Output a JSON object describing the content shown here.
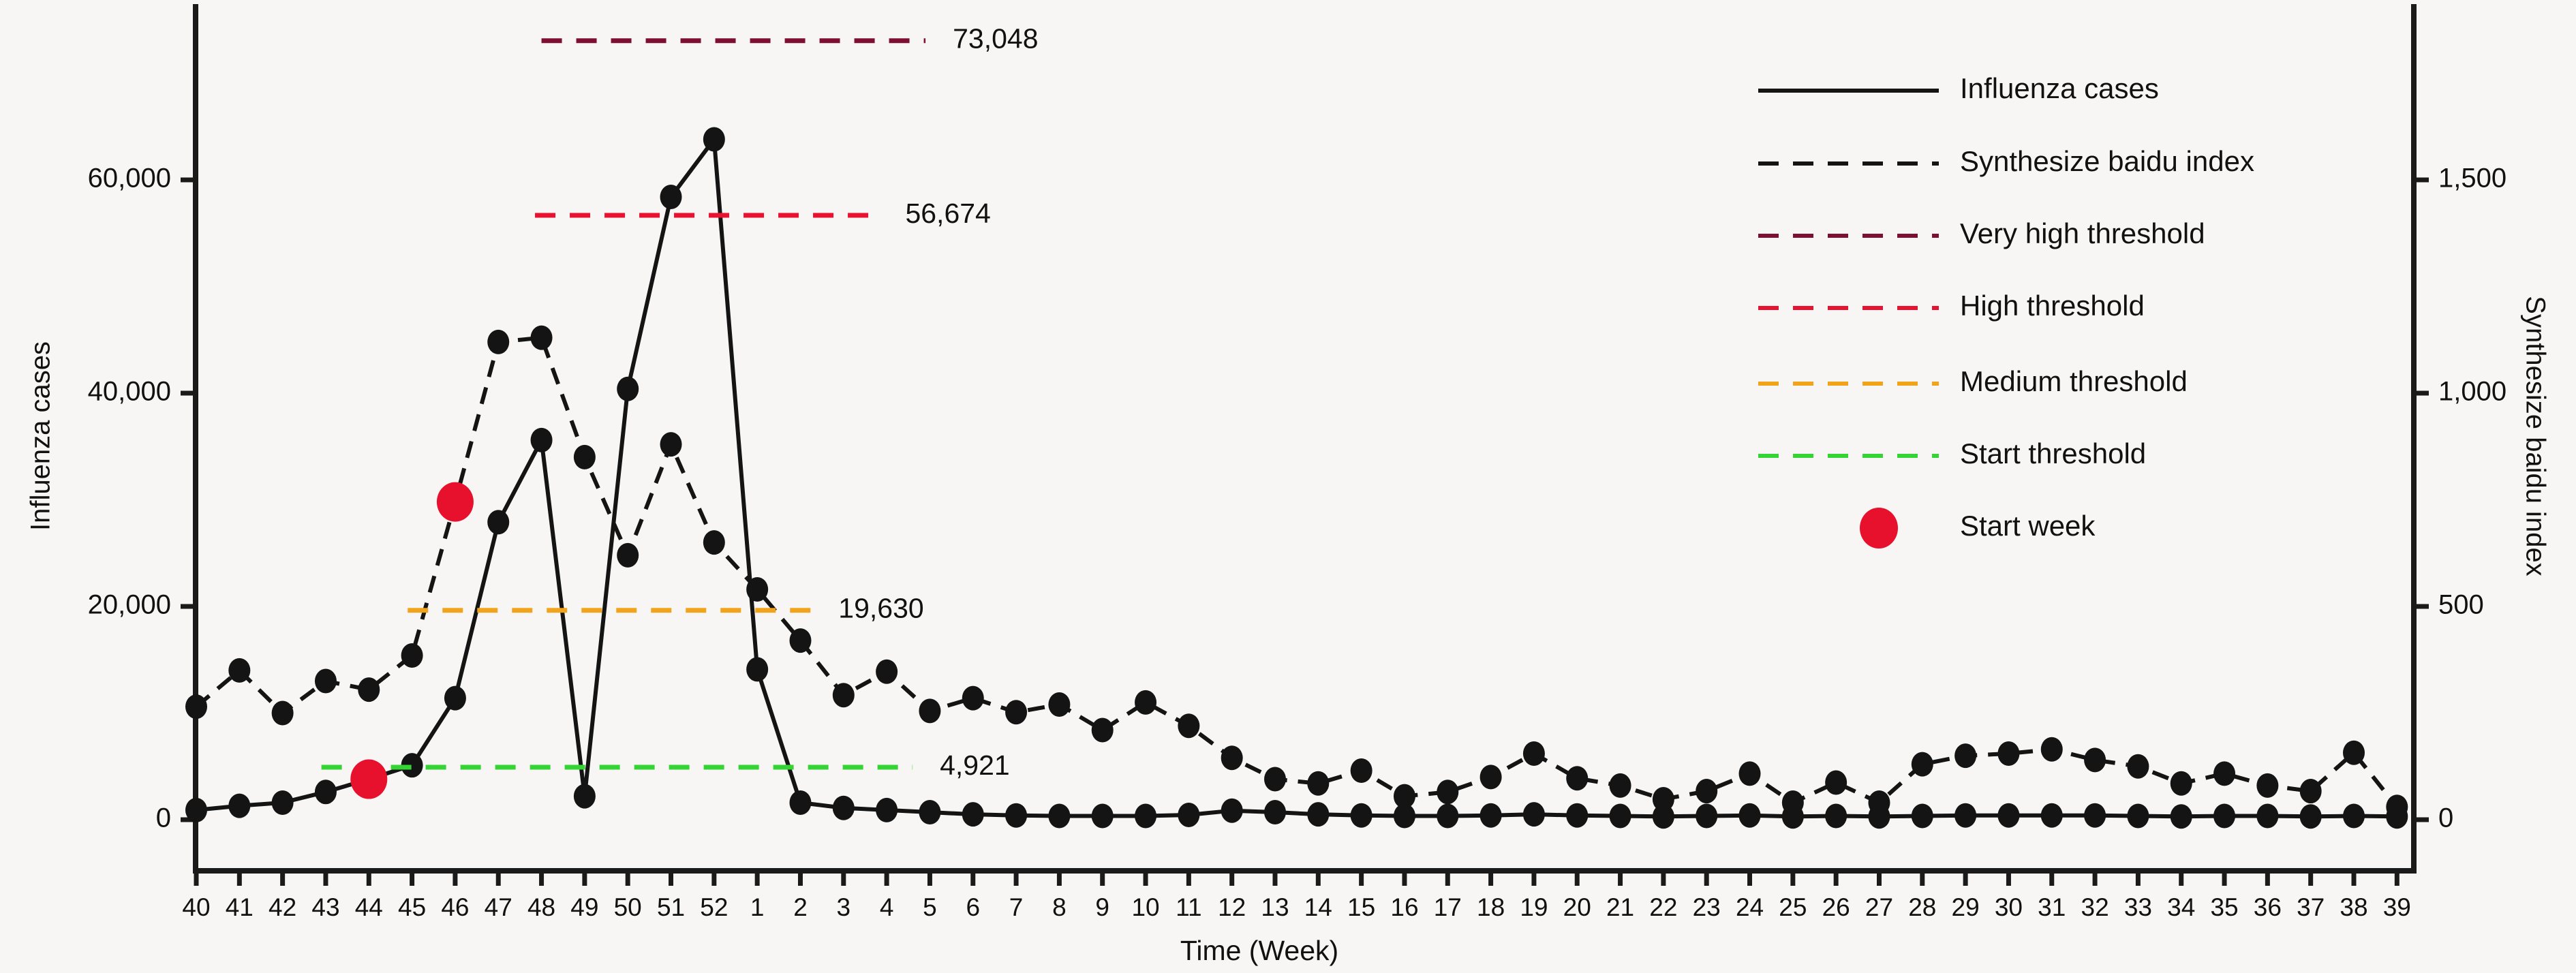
{
  "figure": {
    "background": "#f7f6f4",
    "axis_color": "#1a1a1a"
  },
  "chart_data": {
    "type": "line",
    "xlabel": "Time (Week)",
    "ylabel_left": "Influenza cases",
    "ylabel_right": "Synthesize baidu index",
    "grid": false,
    "legend_position": "upper right",
    "x_categories": [
      "40",
      "41",
      "42",
      "43",
      "44",
      "45",
      "46",
      "47",
      "48",
      "49",
      "50",
      "51",
      "52",
      "1",
      "2",
      "3",
      "4",
      "5",
      "6",
      "7",
      "8",
      "9",
      "10",
      "11",
      "12",
      "13",
      "14",
      "15",
      "16",
      "17",
      "18",
      "19",
      "20",
      "21",
      "22",
      "23",
      "24",
      "25",
      "26",
      "27",
      "28",
      "29",
      "30",
      "31",
      "32",
      "33",
      "34",
      "35",
      "36",
      "37",
      "38",
      "39"
    ],
    "left_axis": {
      "ticks": [
        0,
        20000,
        40000,
        60000
      ],
      "tick_labels": [
        "0",
        "20,000",
        "40,000",
        "60,000"
      ],
      "range": [
        0,
        76500
      ]
    },
    "right_axis": {
      "ticks": [
        0,
        500,
        1000,
        1500
      ],
      "tick_labels": [
        "0",
        "500",
        "1,000",
        "1,500"
      ],
      "range": [
        0,
        1915
      ]
    },
    "series": [
      {
        "name": "Influenza cases",
        "axis": "left",
        "style": "solid",
        "color": "#141414",
        "values": [
          900,
          1300,
          1600,
          2600,
          3800,
          5100,
          11400,
          27900,
          35600,
          2200,
          40400,
          58400,
          63800,
          14100,
          1600,
          1100,
          900,
          700,
          500,
          400,
          350,
          350,
          350,
          450,
          850,
          700,
          500,
          400,
          350,
          350,
          400,
          500,
          400,
          350,
          300,
          350,
          400,
          300,
          350,
          300,
          350,
          400,
          400,
          400,
          400,
          350,
          300,
          350,
          350,
          300,
          350,
          300
        ]
      },
      {
        "name": "Synthesize baidu index",
        "axis": "right",
        "style": "dashed",
        "color": "#141414",
        "values": [
          265,
          350,
          250,
          325,
          305,
          385,
          745,
          1120,
          1130,
          850,
          620,
          880,
          650,
          540,
          420,
          292,
          347,
          255,
          285,
          252,
          270,
          210,
          275,
          220,
          145,
          95,
          85,
          115,
          55,
          65,
          100,
          155,
          97,
          80,
          48,
          67,
          108,
          40,
          87,
          40,
          130,
          150,
          155,
          165,
          140,
          125,
          85,
          108,
          80,
          67,
          157,
          30
        ]
      }
    ],
    "thresholds": [
      {
        "name": "Very high threshold",
        "value": 73048,
        "label": "73,048",
        "color": "#7d0f30",
        "from_week_index": 8.0,
        "to_week_index": 16.9
      },
      {
        "name": "High threshold",
        "value": 56674,
        "label": "56,674",
        "color": "#e8112f",
        "from_week_index": 7.85,
        "to_week_index": 15.8
      },
      {
        "name": "Medium threshold",
        "value": 19630,
        "label": "19,630",
        "color": "#f2a31c",
        "from_week_index": 4.9,
        "to_week_index": 14.25
      },
      {
        "name": "Start threshold",
        "value": 4921,
        "label": "4,921",
        "color": "#35d435",
        "from_week_index": 2.9,
        "to_week_index": 16.6
      }
    ],
    "start_week_markers": [
      {
        "series": "Influenza cases",
        "week_label": "44",
        "week_index": 4,
        "axis": "left",
        "value": 3800
      },
      {
        "series": "Synthesize baidu index",
        "week_label": "46",
        "week_index": 6,
        "axis": "right",
        "value": 745
      }
    ]
  },
  "legend": {
    "marker_color_start_week": "#e8112d",
    "items": [
      {
        "label": "Influenza cases",
        "swatch": "solid-line",
        "color": "#141414"
      },
      {
        "label": "Synthesize baidu index",
        "swatch": "dashed-line",
        "color": "#141414"
      },
      {
        "label": "Very high threshold",
        "swatch": "dashed-line",
        "color": "#7d0f30"
      },
      {
        "label": "High threshold",
        "swatch": "dashed-line",
        "color": "#e8112f"
      },
      {
        "label": "Medium threshold",
        "swatch": "dashed-line",
        "color": "#f2a31c"
      },
      {
        "label": "Start threshold",
        "swatch": "dashed-line",
        "color": "#35d435"
      },
      {
        "label": "Start week",
        "swatch": "dot",
        "color": "#e8112d"
      }
    ]
  }
}
